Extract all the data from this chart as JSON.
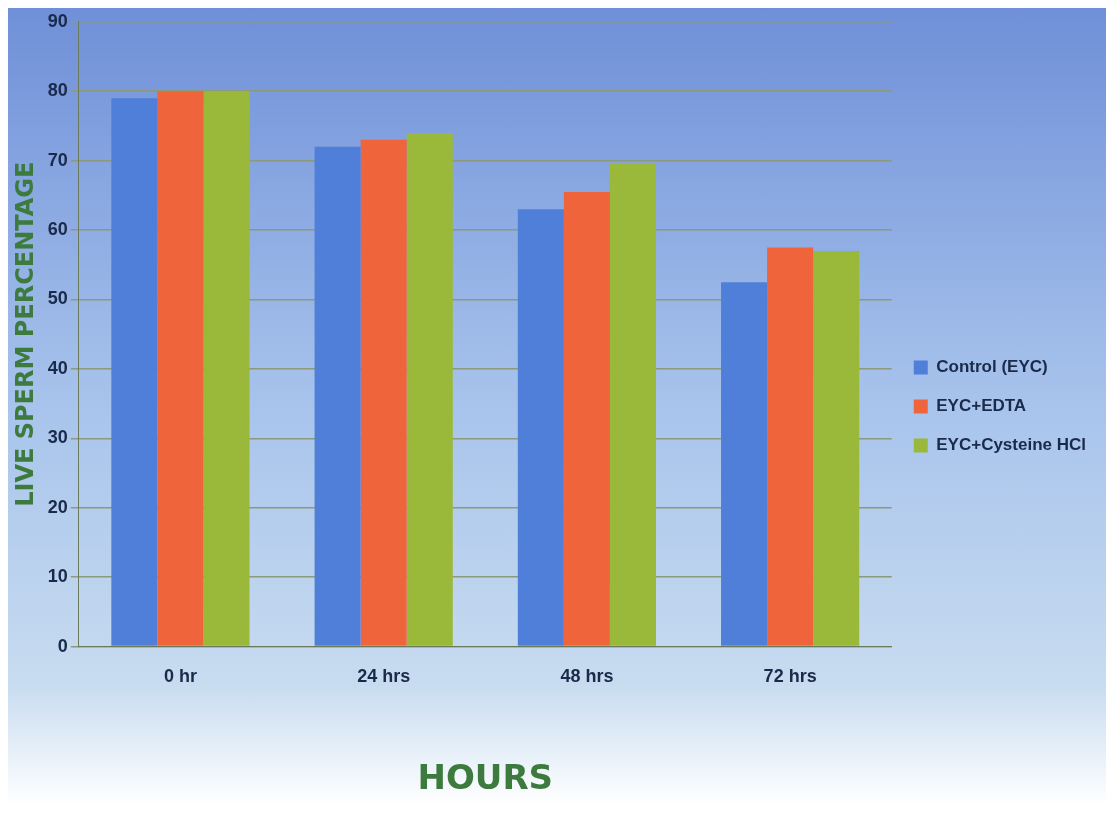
{
  "chart_data": {
    "type": "bar",
    "xlabel": "HOURS",
    "ylabel": "LIVE SPERM PERCENTAGE",
    "categories": [
      "0 hr",
      "24 hrs",
      "48 hrs",
      "72 hrs"
    ],
    "series": [
      {
        "name": "Control (EYC)",
        "color": "#4f7fd8",
        "values": [
          79,
          72,
          63,
          52.5
        ]
      },
      {
        "name": "EYC+EDTA",
        "color": "#f0643c",
        "values": [
          80,
          73,
          65.5,
          57.5
        ]
      },
      {
        "name": "EYC+Cysteine HCl",
        "color": "#9ab83a",
        "values": [
          80,
          74,
          69.5,
          57
        ]
      }
    ],
    "ylim": [
      0,
      90
    ],
    "yticks": [
      0,
      10,
      20,
      30,
      40,
      50,
      60,
      70,
      80,
      90
    ],
    "grid": "y",
    "legend": "right"
  }
}
